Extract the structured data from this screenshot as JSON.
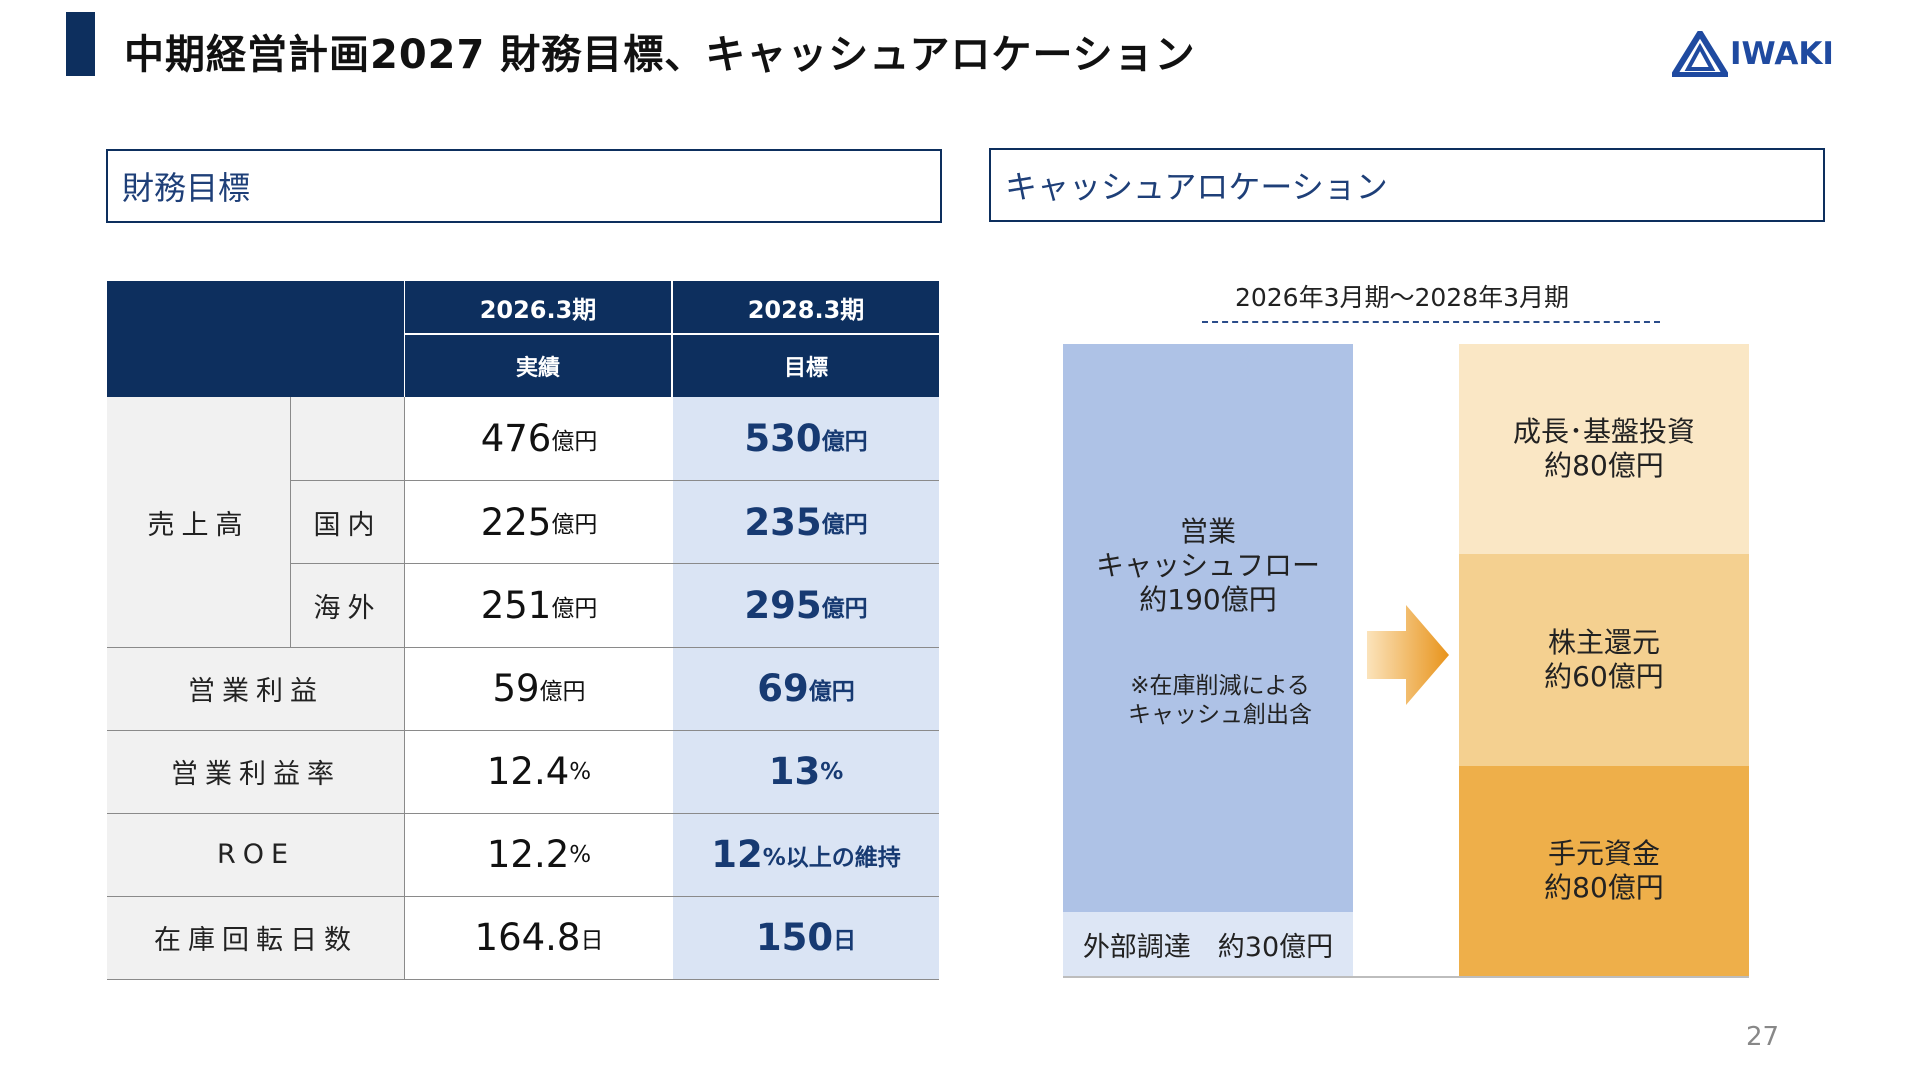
{
  "header": {
    "title": "中期経営計画2027  財務目標、キャッシュアロケーション",
    "logo_text": "IWAKI",
    "accent_color": "#0d2f5e",
    "logo_color": "#1f4aa0"
  },
  "left_section": {
    "heading": "財務目標",
    "table": {
      "columns": [
        {
          "period": "2026.3期",
          "sub": "実績"
        },
        {
          "period": "2028.3期",
          "sub": "目標"
        }
      ],
      "sales_group": "売上高",
      "rows": [
        {
          "label": "",
          "v26": "476",
          "u26": "億円",
          "v28": "530",
          "u28": "億円"
        },
        {
          "label": "国内",
          "v26": "225",
          "u26": "億円",
          "v28": "235",
          "u28": "億円"
        },
        {
          "label": "海外",
          "v26": "251",
          "u26": "億円",
          "v28": "295",
          "u28": "億円"
        },
        {
          "label": "営業利益",
          "v26": "59",
          "u26": "億円",
          "v28": "69",
          "u28": "億円"
        },
        {
          "label": "営業利益率",
          "v26": "12.4",
          "u26": "%",
          "v28": "13",
          "u28": "%"
        },
        {
          "label": "ROE",
          "v26": "12.2",
          "u26": "%",
          "v28": "12",
          "u28": "%以上の維持"
        },
        {
          "label": "在庫回転日数",
          "v26": "164.8",
          "u26": "日",
          "v28": "150",
          "u28": "日"
        }
      ]
    }
  },
  "right_section": {
    "heading": "キャッシュアロケーション",
    "period": "2026年3月期〜2028年3月期",
    "inflow": {
      "title_lines": [
        "営業",
        "キャッシュフロー",
        "約190億円"
      ],
      "note_lines": [
        "※在庫削減による",
        "キャッシュ創出含"
      ],
      "external": "外部調達　約30億円"
    },
    "outflow": [
      {
        "lines": [
          "成長･基盤投資",
          "約80億円"
        ],
        "color": "#fae7c5"
      },
      {
        "lines": [
          "株主還元",
          "約60億円"
        ],
        "color": "#f4d090"
      },
      {
        "lines": [
          "手元資金",
          "約80億円"
        ],
        "color": "#eeaf4a"
      }
    ]
  },
  "page_number": "27"
}
